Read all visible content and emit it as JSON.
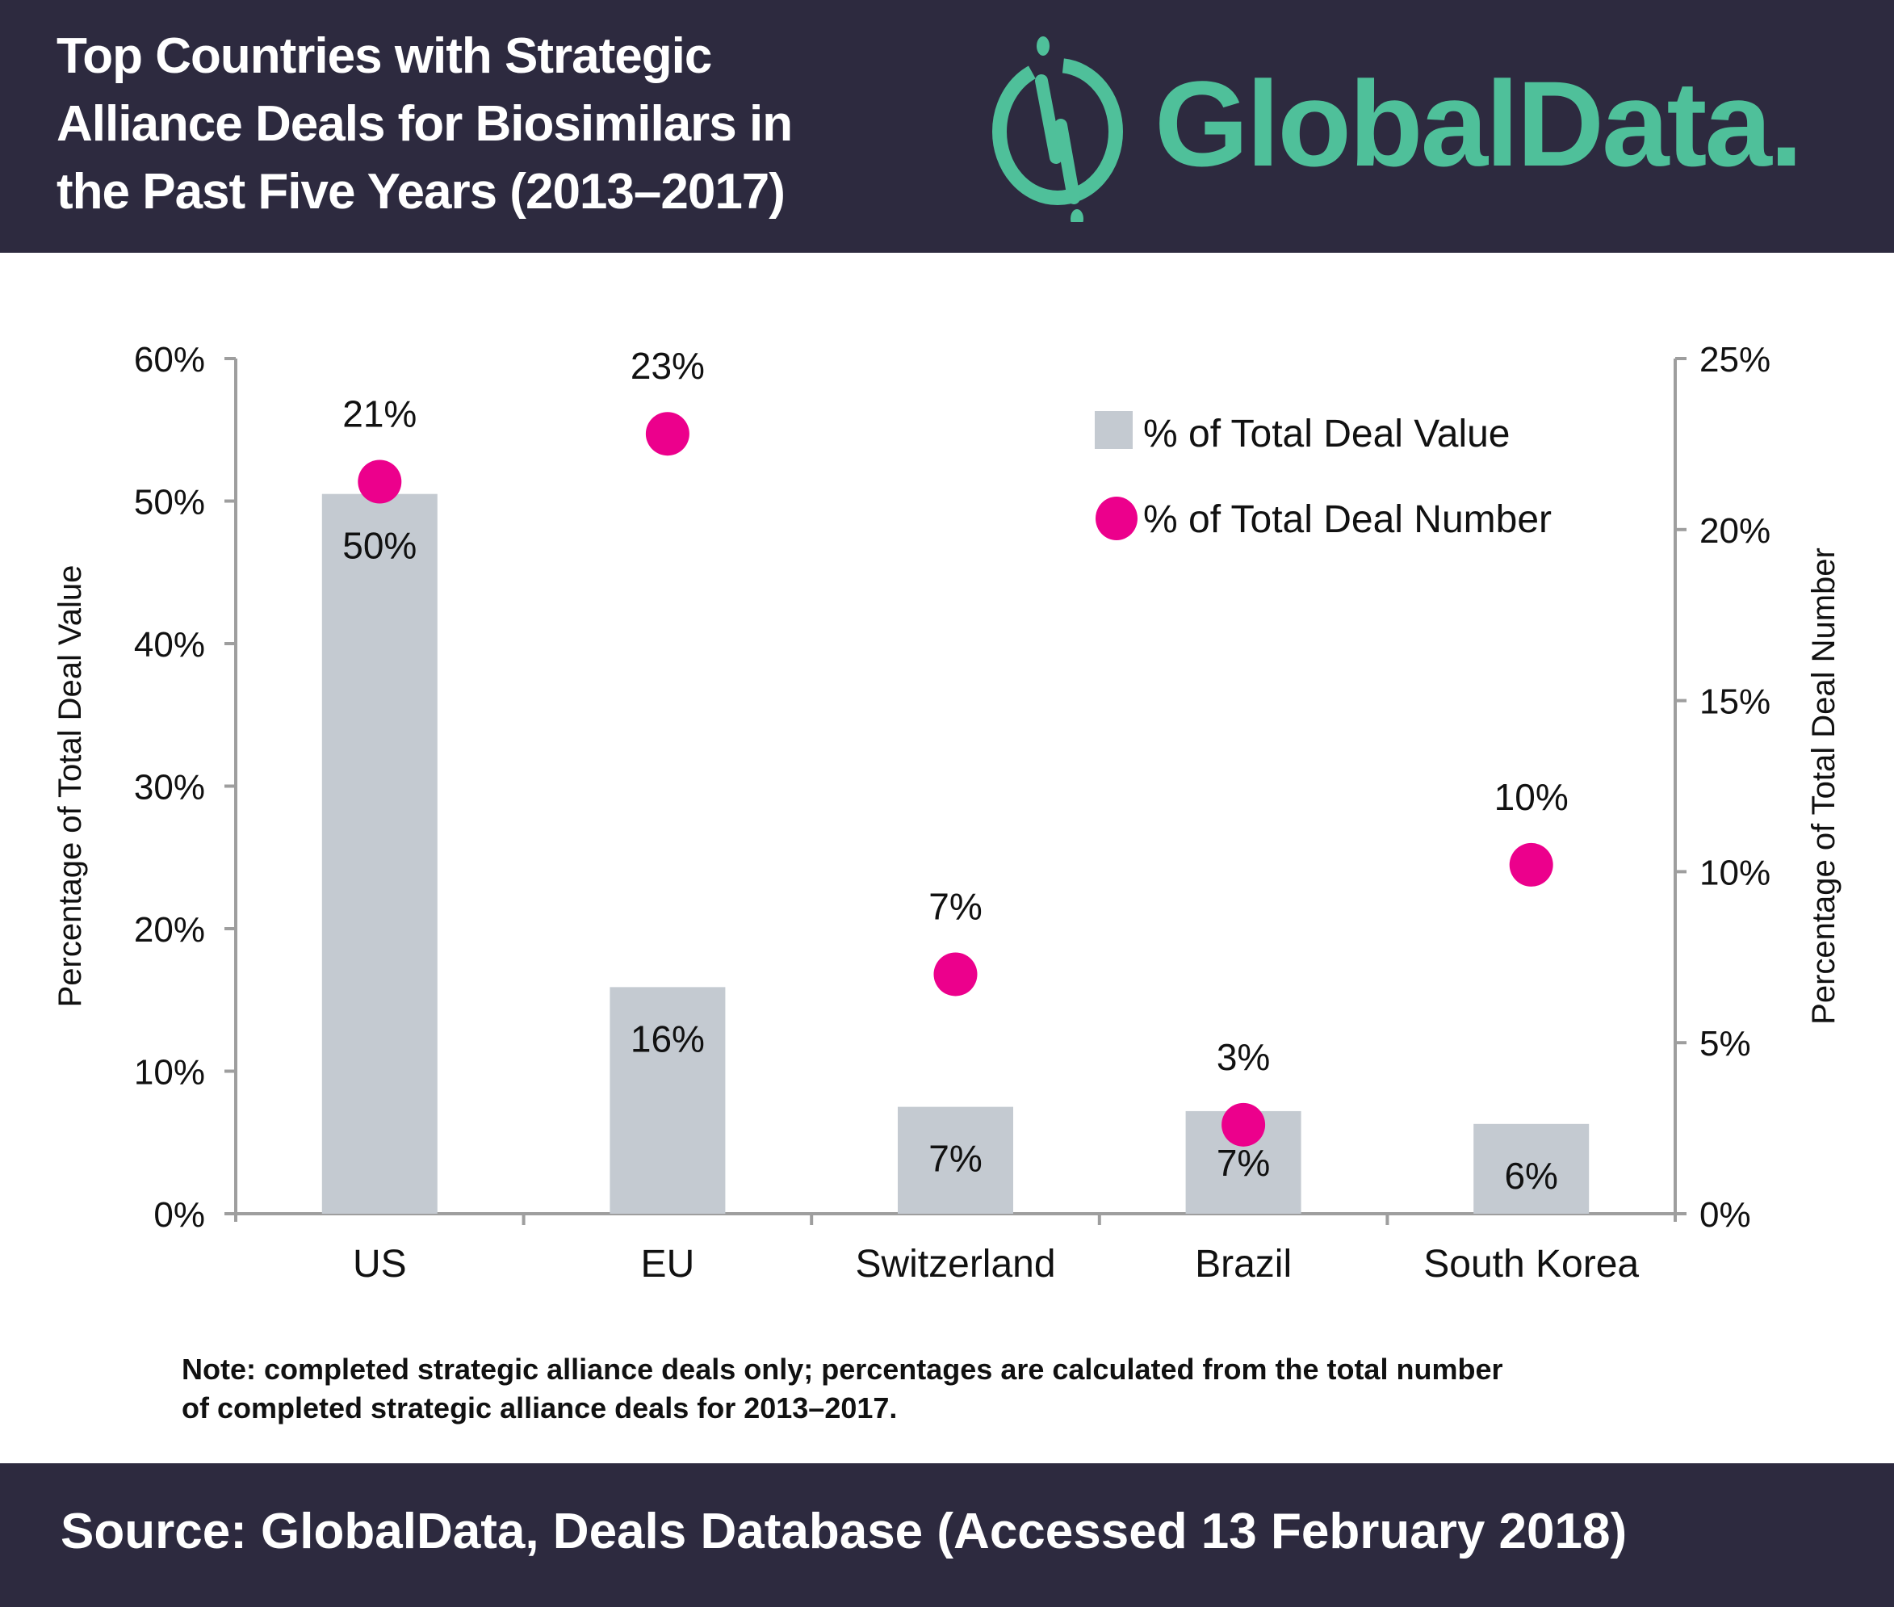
{
  "header": {
    "title_lines": [
      "Top Countries with Strategic",
      "Alliance Deals for Biosimilars in",
      "the Past Five Years (2013–2017)"
    ],
    "logo_text": "GlobalData.",
    "logo_icon": "globaldata-logo-icon"
  },
  "colors": {
    "header_bg": "#2d2a3f",
    "brand_green": "#4fc09a",
    "bar": "#c4cad1",
    "point": "#ec008c",
    "axis": "#9e9e9e"
  },
  "chart_data": {
    "type": "bar",
    "title": "Top Countries with Strategic Alliance Deals for Biosimilars in the Past Five Years (2013–2017)",
    "categories": [
      "US",
      "EU",
      "Switzerland",
      "Brazil",
      "South Korea"
    ],
    "series": [
      {
        "name": "% of Total Deal Value",
        "type": "bar",
        "axis": "left",
        "values": [
          50.5,
          15.9,
          7.5,
          7.2,
          6.3
        ],
        "labels": [
          "50%",
          "16%",
          "7%",
          "7%",
          "6%"
        ]
      },
      {
        "name": "% of Total Deal Number",
        "type": "scatter",
        "axis": "right",
        "values": [
          21.4,
          22.8,
          7.0,
          2.6,
          10.2
        ],
        "labels": [
          "21%",
          "23%",
          "7%",
          "3%",
          "10%"
        ]
      }
    ],
    "ylabel": "Percentage of Total Deal Value",
    "y2label": "Percentage of Total Deal Number",
    "ylim": [
      0,
      60
    ],
    "y2lim": [
      0,
      25
    ],
    "yticks": [
      "0%",
      "10%",
      "20%",
      "30%",
      "40%",
      "50%",
      "60%"
    ],
    "y2ticks": [
      "0%",
      "5%",
      "10%",
      "15%",
      "20%",
      "25%"
    ],
    "grid": false,
    "legend_position": "top-right"
  },
  "note": {
    "lines": [
      "Note: completed strategic alliance deals only; percentages are calculated from the total number",
      "of completed strategic alliance deals for 2013–2017."
    ]
  },
  "footer": {
    "source": "Source: GlobalData, Deals Database (Accessed 13 February 2018)"
  }
}
